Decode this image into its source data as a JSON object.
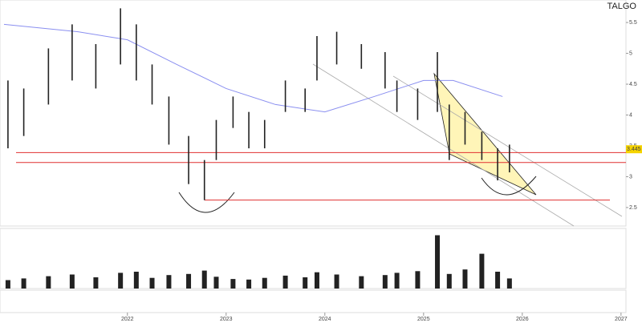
{
  "chart_data": {
    "type": "hilo",
    "title": "TALGO",
    "x": [
      2020.79,
      2020.95,
      2021.2,
      2021.44,
      2021.68,
      2021.93,
      2022.09,
      2022.25,
      2022.42,
      2022.62,
      2022.78,
      2022.9,
      2023.07,
      2023.23,
      2023.39,
      2023.6,
      2023.8,
      2023.92,
      2024.12,
      2024.37,
      2024.61,
      2024.73,
      2024.94,
      2025.14,
      2025.26,
      2025.42,
      2025.59,
      2025.75,
      2025.87
    ],
    "high": [
      4.56,
      4.43,
      5.08,
      5.47,
      5.15,
      5.73,
      5.47,
      4.82,
      4.3,
      3.66,
      3.27,
      3.92,
      4.3,
      4.05,
      3.92,
      4.56,
      4.43,
      5.28,
      5.35,
      5.15,
      5.02,
      4.56,
      4.43,
      5.02,
      4.17,
      4.05,
      3.73,
      3.46,
      3.52
    ],
    "low": [
      3.46,
      3.66,
      4.17,
      4.56,
      4.43,
      4.82,
      4.56,
      4.17,
      3.52,
      2.88,
      2.62,
      3.27,
      3.79,
      3.46,
      3.46,
      4.05,
      4.05,
      4.56,
      4.82,
      4.75,
      4.43,
      4.05,
      3.92,
      4.05,
      3.27,
      3.52,
      3.27,
      2.94,
      3.07
    ],
    "volume": [
      1.5,
      1.8,
      2.2,
      2.5,
      2.0,
      2.8,
      3.0,
      1.9,
      2.4,
      2.6,
      3.2,
      2.1,
      1.7,
      1.6,
      1.9,
      2.3,
      2.0,
      2.9,
      2.5,
      2.2,
      2.4,
      2.8,
      3.1,
      9.5,
      2.6,
      3.4,
      6.2,
      3.0,
      1.8
    ],
    "volume_ylim": [
      0,
      10
    ],
    "ma_x": [
      2020.75,
      2021.5,
      2022.0,
      2022.5,
      2023.0,
      2023.5,
      2024.0,
      2024.5,
      2025.0,
      2025.3,
      2025.8
    ],
    "ma": [
      5.47,
      5.35,
      5.22,
      4.82,
      4.43,
      4.17,
      4.05,
      4.3,
      4.56,
      4.56,
      4.3
    ],
    "levels": [
      3.39,
      3.23,
      2.62
    ],
    "last_price": {
      "value": 3.445,
      "label": "3.445"
    },
    "bar_color": "#222222",
    "ma_color": "#8a8ff0",
    "level_color": "#e03030",
    "volume_color": "#222222",
    "xlim": [
      2020.75,
      2027.05
    ],
    "ylim": [
      2.2,
      5.8
    ],
    "xticks": [
      2022,
      2023,
      2024,
      2025,
      2026,
      2027
    ],
    "yticks": [
      2.5,
      3,
      3.5,
      4,
      4.5,
      5,
      5.5
    ]
  }
}
